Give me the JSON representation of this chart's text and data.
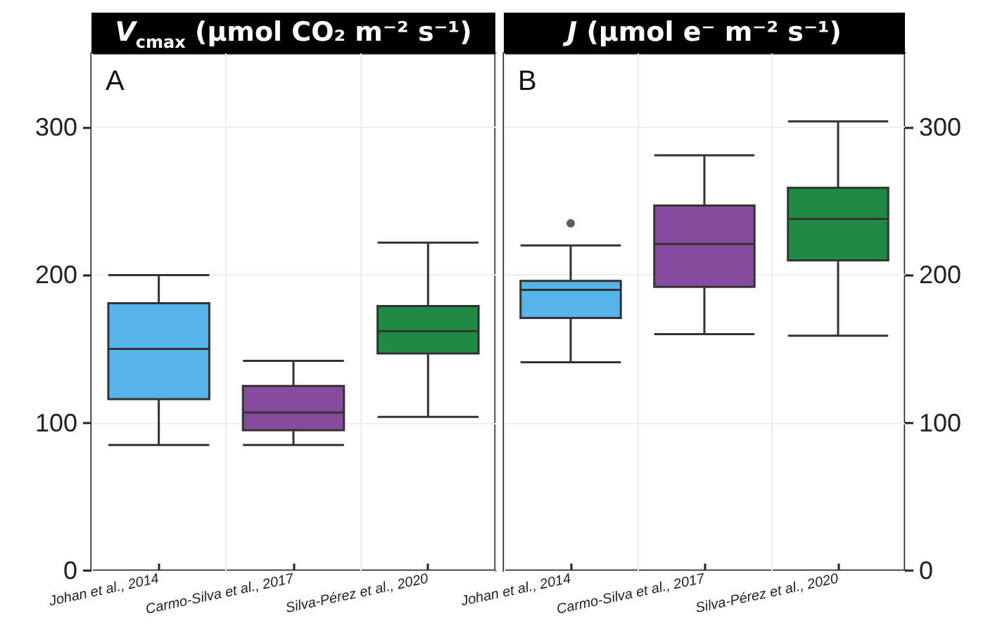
{
  "chart_data": [
    {
      "type": "box",
      "title": "V$_{cmax}$ (µmol CO₂ m⁻² s⁻¹)",
      "annotations": [
        "A"
      ],
      "categories": [
        "Johan et al., 2014",
        "Carmo-Silva et al., 2017",
        "Silva-Pérez et al., 2020"
      ],
      "colors": [
        "#56b4e9",
        "#874b9e",
        "#1f8a44"
      ],
      "boxes": [
        {
          "low": 85,
          "q1": 116,
          "median": 150,
          "q3": 181,
          "high": 200
        },
        {
          "low": 85,
          "q1": 95,
          "median": 107,
          "q3": 125,
          "high": 142
        },
        {
          "low": 104,
          "q1": 147,
          "median": 162,
          "q3": 179,
          "high": 222
        }
      ],
      "ylim": [
        0,
        350
      ],
      "yticks": [
        0,
        100,
        200,
        300
      ],
      "grid": true
    },
    {
      "type": "box",
      "title": "J (µmol e⁻ m⁻² s⁻¹)",
      "annotations": [
        "B"
      ],
      "categories": [
        "Johan et al., 2014",
        "Carmo-Silva et al., 2017",
        "Silva-Pérez et al., 2020"
      ],
      "colors": [
        "#56b4e9",
        "#874b9e",
        "#1f8a44"
      ],
      "boxes": [
        {
          "low": 141,
          "q1": 171,
          "median": 190,
          "q3": 196,
          "high": 220,
          "outliers": [
            235
          ]
        },
        {
          "low": 160,
          "q1": 192,
          "median": 221,
          "q3": 247,
          "high": 281
        },
        {
          "low": 159,
          "q1": 210,
          "median": 238,
          "q3": 259,
          "high": 304
        }
      ],
      "ylim": [
        0,
        350
      ],
      "yticks": [
        0,
        100,
        200,
        300
      ],
      "grid": true
    }
  ]
}
